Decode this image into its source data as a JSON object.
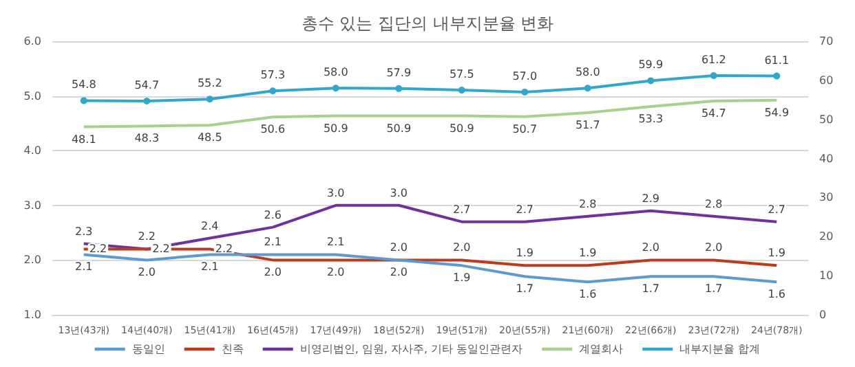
{
  "chart_data": {
    "type": "line",
    "title": "총수 있는 집단의 내부지분율 변화",
    "categories": [
      "13년(43개)",
      "14년(40개)",
      "15년(41개)",
      "16년(45개)",
      "17년(49개)",
      "18년(52개)",
      "19년(51개)",
      "20년(55개)",
      "21년(60개)",
      "22년(66개)",
      "23년(72개)",
      "24년(78개)"
    ],
    "series": [
      {
        "name": "동일인",
        "color": "#5b9bd5",
        "marker": "none",
        "values": [
          2.1,
          2.0,
          2.1,
          2.1,
          2.1,
          2.0,
          1.9,
          1.7,
          1.6,
          1.7,
          1.7,
          1.6
        ],
        "value_labels": [
          "2.1",
          "2.0",
          "2.1",
          "2.1",
          "2.1",
          "2.0",
          "1.9",
          "1.7",
          "1.6",
          "1.7",
          "1.7",
          "1.6"
        ]
      },
      {
        "name": "친족",
        "color": "#c0391b",
        "marker": "none",
        "values": [
          2.2,
          2.2,
          2.2,
          2.0,
          2.0,
          2.0,
          2.0,
          1.9,
          1.9,
          2.0,
          2.0,
          1.9
        ],
        "value_labels": [
          "2.2",
          "2.2",
          "2.2",
          "2.0",
          "2.0",
          "2.0",
          "2.0",
          "1.9",
          "1.9",
          "2.0",
          "2.0",
          "1.9"
        ]
      },
      {
        "name": "비영리법인, 임원, 자사주, 기타 동일인관련자",
        "color": "#7030a0",
        "marker": "none",
        "values": [
          2.3,
          2.2,
          2.4,
          2.6,
          3.0,
          3.0,
          2.7,
          2.7,
          2.8,
          2.9,
          2.8,
          2.7
        ],
        "value_labels": [
          "2.3",
          "2.2",
          "2.4",
          "2.6",
          "3.0",
          "3.0",
          "2.7",
          "2.7",
          "2.8",
          "2.9",
          "2.8",
          "2.7"
        ]
      },
      {
        "name": "계열회사",
        "color": "#a9d18e",
        "marker": "none",
        "axis": "y2",
        "values": [
          48.1,
          48.3,
          48.5,
          50.6,
          50.9,
          50.9,
          50.9,
          50.7,
          51.7,
          53.3,
          54.7,
          54.9
        ],
        "value_labels": [
          "48.1",
          "48.3",
          "48.5",
          "50.6",
          "50.9",
          "50.9",
          "50.9",
          "50.7",
          "51.7",
          "53.3",
          "54.7",
          "54.9"
        ]
      },
      {
        "name": "내부지분율 합계",
        "color": "#2ea8cf",
        "marker": "circle",
        "axis": "y2",
        "values": [
          54.8,
          54.7,
          55.2,
          57.3,
          58.0,
          57.9,
          57.5,
          57.0,
          58.0,
          59.9,
          61.2,
          61.1
        ],
        "value_labels": [
          "54.8",
          "54.7",
          "55.2",
          "57.3",
          "58.0",
          "57.9",
          "57.5",
          "57.0",
          "58.0",
          "59.9",
          "61.2",
          "61.1"
        ]
      }
    ],
    "ylim": [
      1.0,
      6.0
    ],
    "yticks": [
      {
        "value": 1,
        "label": "1.0"
      },
      {
        "value": 2,
        "label": "2.0"
      },
      {
        "value": 3,
        "label": "3.0"
      },
      {
        "value": 4,
        "label": "4.0"
      },
      {
        "value": 5,
        "label": "5.0"
      },
      {
        "value": 6,
        "label": "6.0"
      }
    ],
    "y2lim": [
      0,
      70
    ],
    "y2ticks": [
      0,
      10,
      20,
      30,
      40,
      50,
      60,
      70
    ],
    "grid": "y",
    "legend": "bottom",
    "line_style": "solid",
    "data_labels": true
  }
}
